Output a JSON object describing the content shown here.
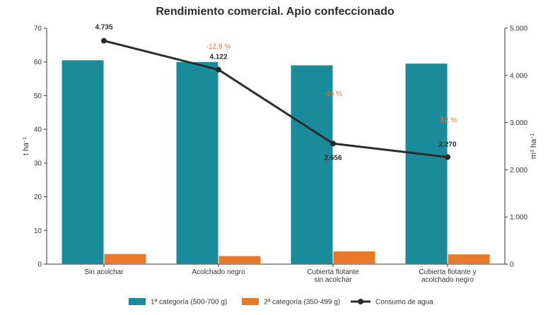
{
  "chart_data": {
    "type": "bar",
    "title": "Rendimiento comercial. Apio confeccionado",
    "categories": [
      [
        "Sin acolchar"
      ],
      [
        "Acolchado negro"
      ],
      [
        "Cubierta flotante",
        "sin acolchar"
      ],
      [
        "Cubierta flotante y",
        "acolchado negro"
      ]
    ],
    "ylabel_left": "t ha",
    "ylabel_left_sup": "−1",
    "ylabel_right": "m",
    "ylabel_right_sup1": "3",
    "ylabel_right_mid": " ha",
    "ylabel_right_sup2": "−1",
    "ylim_left": [
      0,
      70
    ],
    "yticks_left": [
      "0",
      "10",
      "20",
      "30",
      "40",
      "50",
      "60",
      "70"
    ],
    "ylim_right": [
      0,
      5000
    ],
    "yticks_right": [
      "0",
      "1.000",
      "2.000",
      "3.000",
      "4.000",
      "5.000"
    ],
    "series": [
      {
        "name": "1ª categoría (500-700 g)",
        "kind": "bar",
        "axis": "left",
        "color": "#1a8b9b",
        "values": [
          60.5,
          60.0,
          59.0,
          59.5
        ]
      },
      {
        "name": "2ª categoría (350-499 g)",
        "kind": "bar",
        "axis": "left",
        "color": "#e8792b",
        "values": [
          3.0,
          2.4,
          3.8,
          2.9
        ]
      },
      {
        "name": "Consumo de agua",
        "kind": "line",
        "axis": "right",
        "color": "#2b2b2b",
        "values": [
          4735,
          4122,
          2556,
          2270
        ],
        "labels": [
          "4.735",
          "4.122",
          "2.556",
          "2.270"
        ]
      }
    ],
    "annotations": [
      "",
      "-12,9 %",
      "-46 %",
      "-52 %"
    ],
    "legend_position": "bottom",
    "grid": false
  }
}
